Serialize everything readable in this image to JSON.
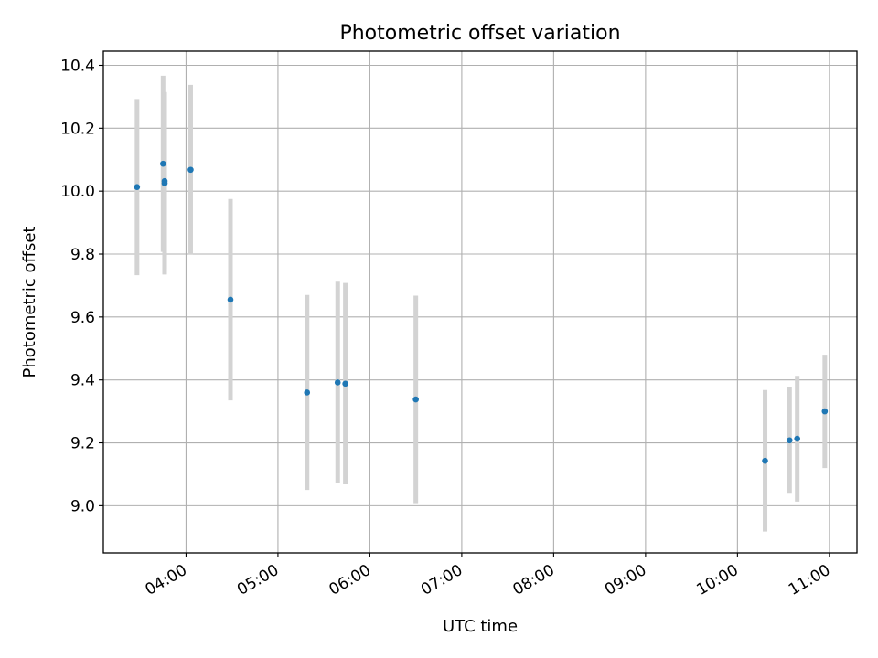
{
  "chart_data": {
    "type": "scatter",
    "title": "Photometric offset variation",
    "xlabel": "UTC time",
    "ylabel": "Photometric offset",
    "grid": true,
    "x_unit": "hours UTC",
    "xlim": [
      "03:06",
      "11:18"
    ],
    "ylim": [
      8.85,
      10.445
    ],
    "xticks": [
      "04:00",
      "05:00",
      "06:00",
      "07:00",
      "08:00",
      "09:00",
      "10:00",
      "11:00"
    ],
    "yticks": [
      "9.0",
      "9.2",
      "9.4",
      "9.6",
      "9.8",
      "10.0",
      "10.2",
      "10.4"
    ],
    "marker_color": "#1f77b4",
    "errorbar_color": "#d3d3d3",
    "points": [
      {
        "x": "03:28",
        "y": 10.013,
        "err": 0.28
      },
      {
        "x": "03:45",
        "y": 10.087,
        "err": 0.28
      },
      {
        "x": "03:46",
        "y": 10.025,
        "err": 0.29
      },
      {
        "x": "03:46",
        "y": 10.032,
        "err": 0.28
      },
      {
        "x": "04:03",
        "y": 10.068,
        "err": 0.27
      },
      {
        "x": "04:29",
        "y": 9.655,
        "err": 0.32
      },
      {
        "x": "05:19",
        "y": 9.36,
        "err": 0.31
      },
      {
        "x": "05:39",
        "y": 9.392,
        "err": 0.32
      },
      {
        "x": "05:44",
        "y": 9.388,
        "err": 0.32
      },
      {
        "x": "06:30",
        "y": 9.338,
        "err": 0.33
      },
      {
        "x": "10:18",
        "y": 9.143,
        "err": 0.225
      },
      {
        "x": "10:34",
        "y": 9.208,
        "err": 0.17
      },
      {
        "x": "10:39",
        "y": 9.213,
        "err": 0.2
      },
      {
        "x": "10:57",
        "y": 9.3,
        "err": 0.18
      }
    ]
  }
}
